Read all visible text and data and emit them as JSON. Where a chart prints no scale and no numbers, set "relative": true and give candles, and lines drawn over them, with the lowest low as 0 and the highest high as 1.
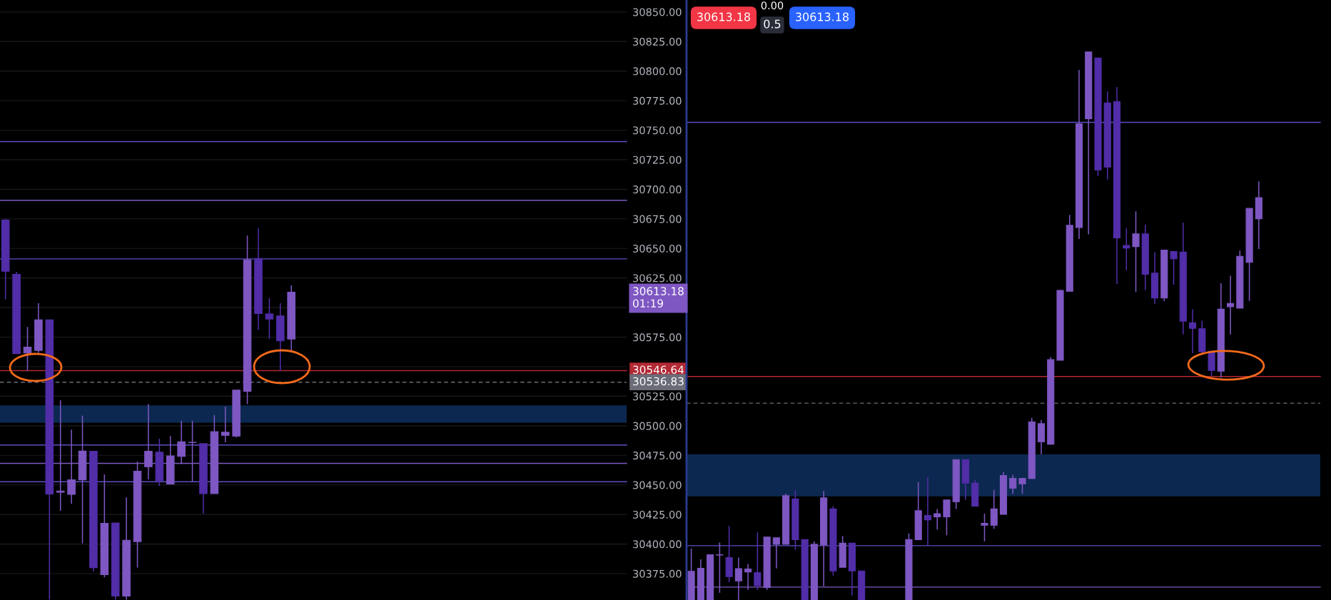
{
  "chart_data": [
    {
      "type": "candlestick",
      "categories": [
        null,
        null,
        null,
        null,
        null,
        null,
        null,
        null,
        null,
        null,
        null,
        null,
        null,
        null,
        null,
        null,
        null,
        null,
        null,
        null,
        null,
        null,
        null,
        null,
        null,
        null,
        null,
        null,
        null,
        null,
        null,
        null,
        null,
        null,
        null,
        null,
        null,
        null,
        null,
        null,
        null,
        null,
        null,
        null,
        null,
        null,
        null,
        null,
        null,
        null,
        null,
        null,
        null,
        null,
        null,
        null,
        null
      ],
      "ohlc": [
        [
          30673.9,
          30675.0,
          30607.0,
          30630.7
        ],
        [
          30628.1,
          30630.2,
          30561.1,
          30561.1
        ],
        [
          30561.6,
          30583.6,
          30546.4,
          30566.5
        ],
        [
          30563.7,
          30603.7,
          30561.6,
          30589.6
        ],
        [
          30589.6,
          30589.6,
          30353.0,
          30442.3
        ],
        [
          30443.8,
          30521.6,
          30428.1,
          30444.9
        ],
        [
          30442.1,
          30496.8,
          30434.1,
          30454.4
        ],
        [
          30454.2,
          30508.6,
          30400.6,
          30478.6
        ],
        [
          30478.4,
          30478.4,
          30376.8,
          30380.1
        ],
        [
          30374.1,
          30458.9,
          30371.9,
          30417.5
        ],
        [
          30417.9,
          30417.9,
          30353.0,
          30356.0
        ],
        [
          30356.0,
          30439.5,
          30353.0,
          30403.2
        ],
        [
          30402.1,
          30469.8,
          30380.1,
          30461.5
        ],
        [
          30465.4,
          30518.4,
          30454.6,
          30478.4
        ],
        [
          30477.7,
          30489.2,
          30449.2,
          30453.5
        ],
        [
          30450.7,
          30491.4,
          30450.7,
          30474.5
        ],
        [
          30474.1,
          30504.3,
          30467.6,
          30486.4
        ],
        [
          30485.8,
          30504.3,
          30452.5,
          30486.0
        ],
        [
          30484.9,
          30484.9,
          30425.9,
          30442.7
        ],
        [
          30442.7,
          30509.1,
          30442.7,
          30495.0
        ],
        [
          30492.0,
          30516.2,
          30486.0,
          30494.6
        ],
        [
          30491.3,
          30530.2,
          30490.3,
          30530.2
        ],
        [
          30529.2,
          30660.9,
          30518.4,
          30640.4
        ],
        [
          30641.5,
          30667.0,
          30581.0,
          30595.0
        ],
        [
          30594.6,
          30608.0,
          30573.4,
          30590.3
        ],
        [
          30592.9,
          30603.7,
          30546.4,
          30571.9
        ],
        [
          30573.4,
          30618.8,
          30563.7,
          30613.0
        ],
        null,
        null,
        null,
        null,
        null,
        null,
        null,
        null,
        null,
        null,
        null,
        null,
        null,
        null,
        null,
        null,
        null,
        null,
        null,
        null,
        null,
        null,
        null,
        null,
        null,
        null,
        null,
        null,
        null,
        null
      ],
      "colors": [
        "#512da8",
        "#512da8",
        "#7e57c2",
        "#7e57c2",
        "#512da8",
        "#7e57c2",
        "#7e57c2",
        "#7e57c2",
        "#512da8",
        "#7e57c2",
        "#512da8",
        "#7e57c2",
        "#7e57c2",
        "#7e57c2",
        "#512da8",
        "#7e57c2",
        "#7e57c2",
        "#7e57c2",
        "#512da8",
        "#7e57c2",
        "#7e57c2",
        "#7e57c2",
        "#7e57c2",
        "#512da8",
        "#512da8",
        "#512da8",
        "#7e57c2",
        null,
        null,
        null,
        null,
        null,
        null,
        null,
        null,
        null,
        null,
        null,
        null,
        null,
        null,
        null,
        null,
        null,
        null,
        null,
        null,
        null,
        null,
        null,
        null,
        null,
        null,
        null,
        null,
        null,
        null
      ],
      "ylim": [
        30352.7,
        30860.1
      ],
      "yticks": [
        {
          "value": 30375,
          "label": "30375.00"
        },
        {
          "value": 30400,
          "label": "30400.00"
        },
        {
          "value": 30425,
          "label": "30425.00"
        },
        {
          "value": 30450,
          "label": "30450.00"
        },
        {
          "value": 30475,
          "label": "30475.00"
        },
        {
          "value": 30500,
          "label": "30500.00"
        },
        {
          "value": 30525,
          "label": "30525.00"
        },
        {
          "value": 30550,
          "label": null
        },
        {
          "value": 30575,
          "label": "30575.00"
        },
        {
          "value": 30600,
          "label": null
        },
        {
          "value": 30625,
          "label": "30625.00"
        },
        {
          "value": 30650,
          "label": "30650.00"
        },
        {
          "value": 30675,
          "label": "30675.00"
        },
        {
          "value": 30700,
          "label": "30700.00"
        },
        {
          "value": 30725,
          "label": "30725.00"
        },
        {
          "value": 30750,
          "label": "30750.00"
        },
        {
          "value": 30775,
          "label": "30775.00"
        },
        {
          "value": 30800,
          "label": "30800.00"
        },
        {
          "value": 30825,
          "label": "30825.00"
        },
        {
          "value": 30850,
          "label": "30850.00"
        }
      ],
      "tick_labels": "y",
      "grid": "y",
      "ref_lines": [
        {
          "axis": "y",
          "value": 30740.3,
          "color": "#5b4fc4"
        },
        {
          "axis": "y",
          "value": 30690.7,
          "color": "#7e57c2"
        },
        {
          "axis": "y",
          "value": 30641.2,
          "color": "#5b4fc4"
        },
        {
          "axis": "y",
          "value": 30483.8,
          "color": "#5b4fc4"
        },
        {
          "axis": "y",
          "value": 30468.2,
          "color": "#7e57c2"
        },
        {
          "axis": "y",
          "value": 30452.7,
          "color": "#5b4fc4"
        },
        {
          "axis": "y",
          "value": 30546.64,
          "label": "30546.64",
          "color": "#b22833"
        },
        {
          "axis": "y",
          "value": 30536.83,
          "label": "30536.83",
          "color": "#6a6d78",
          "line_style": "dashed"
        }
      ],
      "bands": [
        {
          "axis": "y",
          "from": 30502.6,
          "to": 30517.3,
          "color": "#0c2850"
        }
      ],
      "annotations": [
        "30613.18\n01:19"
      ]
    },
    {
      "type": "candlestick",
      "relative": true,
      "categories": [
        null,
        null,
        null,
        null,
        null,
        null,
        null,
        null,
        null,
        null,
        null,
        null,
        null,
        null,
        null,
        null,
        null,
        null,
        null,
        null,
        null,
        null,
        null,
        null,
        null,
        null,
        null,
        null,
        null,
        null,
        null,
        null,
        null,
        null,
        null,
        null,
        null,
        null,
        null,
        null,
        null,
        null,
        null,
        null,
        null,
        null,
        null,
        null,
        null,
        null,
        null,
        null,
        null,
        null,
        null,
        null,
        null,
        null,
        null,
        null,
        null,
        null,
        null,
        null,
        null,
        null,
        null
      ],
      "ohlc": [
        [
          0,
          0.0938,
          0,
          0.0524
        ],
        [
          0,
          0.0741,
          0,
          0.0577
        ],
        [
          0,
          0.0826,
          0,
          0.0826
        ],
        [
          0.082,
          0.105,
          0.0131,
          0.0826
        ],
        [
          0.0774,
          0.1352,
          0.0328,
          0.0426
        ],
        [
          0.0348,
          0.0774,
          0,
          0.0571
        ],
        [
          0.0512,
          0.0656,
          0.0184,
          0.0564
        ],
        [
          0.0498,
          0.1234,
          0.0184,
          0.0262
        ],
        [
          0.0229,
          0.1149,
          0.0184,
          0.1149
        ],
        [
          0.1017,
          0.1135,
          0.0577,
          0.1135
        ],
        [
          0.1017,
          0.1943,
          0.1017,
          0.1903
        ],
        [
          0.1844,
          0.2002,
          0.0918,
          0.1102
        ],
        [
          0.1102,
          0.1102,
          0,
          0
        ],
        [
          0,
          0.1069,
          0,
          0.1017
        ],
        [
          0.1004,
          0.1989,
          0.0249,
          0.1864
        ],
        [
          0.1661,
          0.1713,
          0.0446,
          0.0531
        ],
        [
          0.0597,
          0.1168,
          0.0597,
          0.1037
        ],
        [
          0.1037,
          0.1037,
          0.0085,
          0.0531
        ],
        [
          0.0531,
          0.0531,
          0,
          0
        ],
        null,
        null,
        null,
        null,
        [
          0,
          0.1214,
          0,
          0.1102
        ],
        [
          0.1102,
          0.2153,
          0.1102,
          0.1628
        ],
        [
          0.1542,
          0.2238,
          0.0999,
          0.1463
        ],
        [
          0.1516,
          0.166,
          0.1286,
          0.1575
        ],
        [
          0.1516,
          0.1825,
          0.1181,
          0.1825
        ],
        [
          0.1792,
          0.256,
          0.166,
          0.256
        ],
        [
          0.256,
          0.256,
          0.1825,
          0.2133
        ],
        [
          0.2133,
          0.2186,
          0.1713,
          0.1713
        ],
        [
          0.1365,
          0.1575,
          0.1069,
          0.1398
        ],
        [
          0.1365,
          0.2008,
          0.1299,
          0.1661
        ],
        [
          0.1562,
          0.2337,
          0.1562,
          0.2271
        ],
        [
          0.2041,
          0.2284,
          0.1936,
          0.2218
        ],
        [
          0.212,
          0.2218,
          0.1936,
          0.2218
        ],
        [
          0.2218,
          0.3322,
          0.2218,
          0.325
        ],
        [
          0.2888,
          0.3282,
          0.2658,
          0.3217
        ],
        [
          0.2842,
          0.4432,
          0.2842,
          0.4386
        ],
        [
          0.4373,
          0.566,
          0.4373,
          0.5647
        ],
        [
          0.5633,
          0.7026,
          0.5633,
          0.6835
        ],
        [
          0.6796,
          0.9672,
          0.6586,
          0.8687
        ],
        [
          0.8779,
          1.0,
          0.6671,
          1.0
        ],
        [
          0.9889,
          0.9889,
          0.7735,
          0.7847
        ],
        [
          0.9068,
          0.9278,
          0.7669,
          0.7899
        ],
        [
          0.9094,
          0.9357,
          0.5765,
          0.6605
        ],
        [
          0.6467,
          0.6783,
          0.6014,
          0.6421
        ],
        [
          0.6448,
          0.7091,
          0.562,
          0.6678
        ],
        [
          0.6678,
          0.6848,
          0.5653,
          0.5942
        ],
        [
          0.5962,
          0.6343,
          0.5403,
          0.5509
        ],
        [
          0.5509,
          0.6382,
          0.545,
          0.6382
        ],
        [
          0.6356,
          0.6356,
          0.5752,
          0.6224
        ],
        [
          0.6349,
          0.6881,
          0.4845,
          0.5088
        ],
        [
          0.5055,
          0.5305,
          0.4504,
          0.4957
        ],
        [
          0.495,
          0.5095,
          0.4484,
          0.453
        ],
        [
          0.4537,
          0.4537,
          0.409,
          0.4189
        ],
        [
          0.4176,
          0.5778,
          0.4057,
          0.5305
        ],
        [
          0.5351,
          0.5916,
          0.4845,
          0.5411
        ],
        [
          0.5325,
          0.6375,
          0.5325,
          0.627
        ],
        [
          0.6159,
          0.7144,
          0.5456,
          0.7144
        ],
        [
          0.6953,
          0.7636,
          0.6402,
          0.7341
        ],
        null,
        null,
        null,
        null,
        null,
        null
      ],
      "colors": [
        "#7e57c2",
        "#7e57c2",
        "#7e57c2",
        "#7e57c2",
        "#512da8",
        "#7e57c2",
        "#7e57c2",
        "#512da8",
        "#7e57c2",
        "#7e57c2",
        "#7e57c2",
        "#512da8",
        "#512da8",
        "#7e57c2",
        "#7e57c2",
        "#512da8",
        "#7e57c2",
        "#512da8",
        "#512da8",
        null,
        null,
        null,
        null,
        "#7e57c2",
        "#7e57c2",
        "#512da8",
        "#7e57c2",
        "#7e57c2",
        "#7e57c2",
        "#512da8",
        "#512da8",
        "#7e57c2",
        "#7e57c2",
        "#7e57c2",
        "#7e57c2",
        "#7e57c2",
        "#7e57c2",
        "#7e57c2",
        "#7e57c2",
        "#7e57c2",
        "#7e57c2",
        "#7e57c2",
        "#7e57c2",
        "#512da8",
        "#512da8",
        "#512da8",
        "#512da8",
        "#7e57c2",
        "#512da8",
        "#512da8",
        "#7e57c2",
        "#512da8",
        "#512da8",
        "#512da8",
        "#512da8",
        "#512da8",
        "#7e57c2",
        "#7e57c2",
        "#7e57c2",
        "#7e57c2",
        "#7e57c2",
        null,
        null,
        null,
        null,
        null,
        null
      ],
      "tick_labels": false,
      "ref_lines": [
        {
          "axis": "y",
          "value": 0.8713,
          "color": "#5b4fc4"
        },
        {
          "axis": "y",
          "value": 0.0991,
          "color": "#5b4fc4"
        },
        {
          "axis": "y",
          "value": 0.0236,
          "color": "#7e57c2"
        },
        {
          "axis": "y",
          "value": 0.4077,
          "color": "#b22833"
        },
        {
          "axis": "y",
          "value": 0.3591,
          "color": "#6a6d78",
          "line_style": "dashed"
        }
      ],
      "bands": [
        {
          "axis": "y",
          "from": 0.189,
          "to": 0.2659,
          "color": "#0c2850"
        }
      ],
      "annotations": [
        "30613.18",
        "0.00",
        "0.5",
        "30613.18"
      ]
    }
  ]
}
